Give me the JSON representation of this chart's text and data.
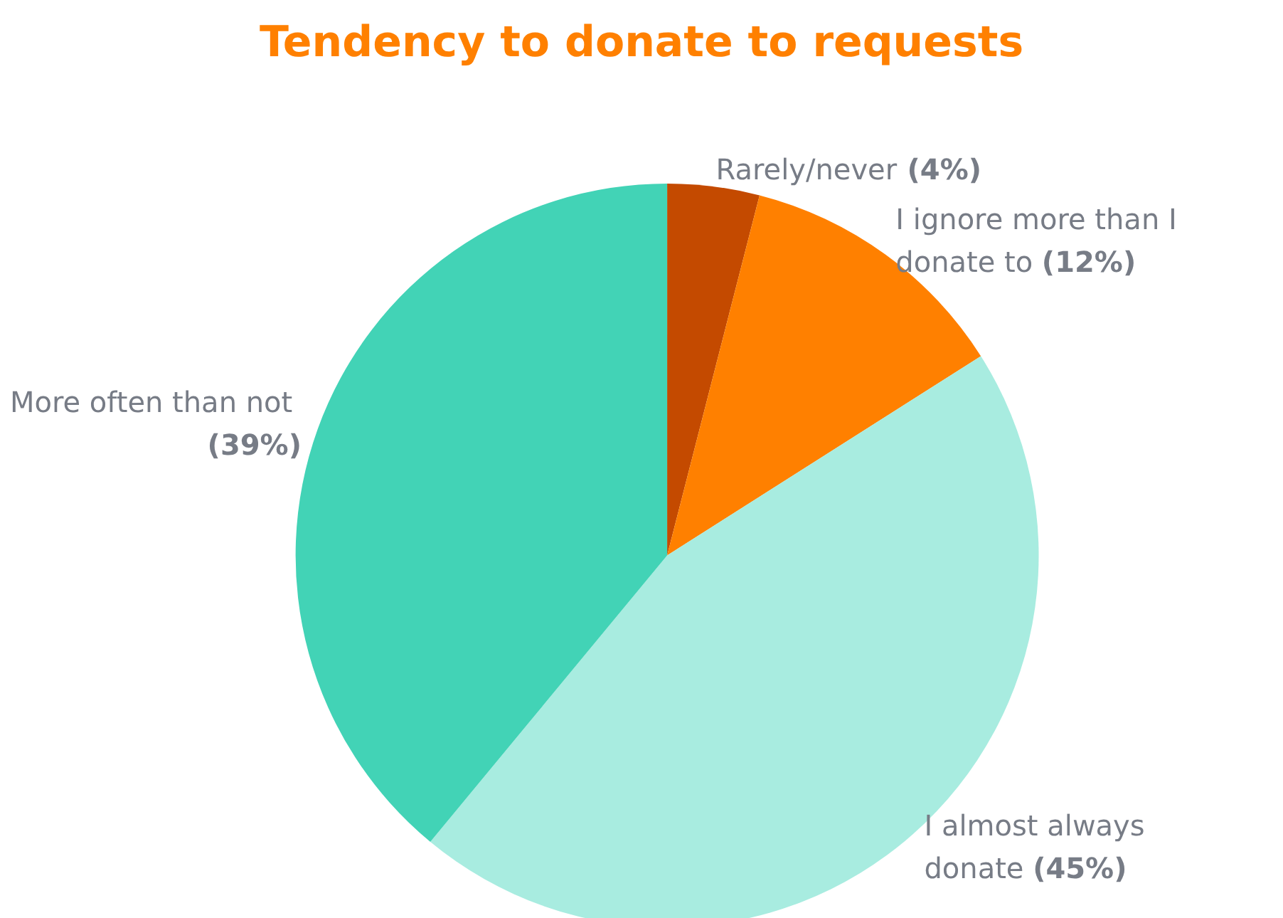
{
  "chart_data": {
    "type": "pie",
    "title": "Tendency to donate to requests",
    "categories": [
      "Rarely/never",
      "I ignore more than I donate to",
      "I almost always donate",
      "More often than not"
    ],
    "values": [
      4,
      12,
      45,
      39
    ],
    "value_labels": [
      "(4%)",
      "(12%)",
      "(45%)",
      "(39%)"
    ],
    "colors": [
      "#c44a00",
      "#ff8000",
      "#a8ece0",
      "#42d3b6"
    ],
    "legend": false
  }
}
